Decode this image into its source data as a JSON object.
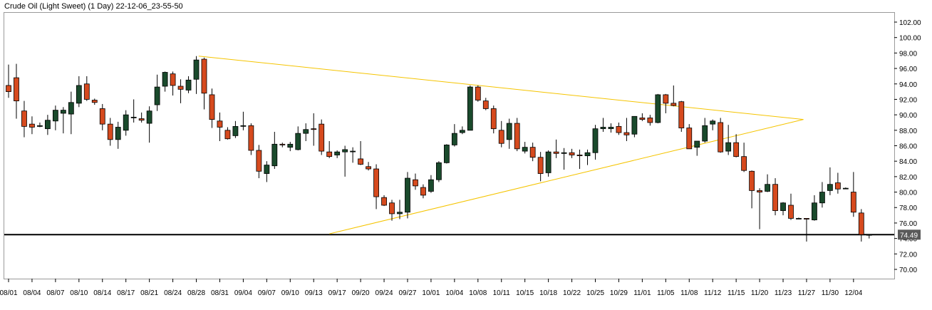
{
  "chart_data": {
    "type": "candlestick",
    "title": "Crude Oil (Light Sweet) (1 Day) 22-12-06_23-55-50",
    "ylim": [
      68.8,
      103.2
    ],
    "y_ticks": [
      102,
      100,
      98,
      96,
      94,
      92,
      90,
      88,
      86,
      84,
      82,
      80,
      78,
      76,
      74,
      72,
      70
    ],
    "y_tick_labels": [
      "102.00",
      "100.00",
      "98.00",
      "96.00",
      "94.00",
      "92.00",
      "90.00",
      "88.00",
      "86.00",
      "84.00",
      "82.00",
      "80.00",
      "78.00",
      "76.00",
      "74.00",
      "72.00",
      "70.00"
    ],
    "x_tick_labels": [
      {
        "label": "08/01",
        "index": 0
      },
      {
        "label": "08/04",
        "index": 3
      },
      {
        "label": "08/07",
        "index": 6
      },
      {
        "label": "08/10",
        "index": 9
      },
      {
        "label": "08/14",
        "index": 12
      },
      {
        "label": "08/17",
        "index": 15
      },
      {
        "label": "08/21",
        "index": 18
      },
      {
        "label": "08/24",
        "index": 21
      },
      {
        "label": "08/28",
        "index": 24
      },
      {
        "label": "08/31",
        "index": 27
      },
      {
        "label": "09/04",
        "index": 30
      },
      {
        "label": "09/07",
        "index": 33
      },
      {
        "label": "09/10",
        "index": 36
      },
      {
        "label": "09/13",
        "index": 39
      },
      {
        "label": "09/17",
        "index": 42
      },
      {
        "label": "09/20",
        "index": 45
      },
      {
        "label": "09/24",
        "index": 48
      },
      {
        "label": "09/27",
        "index": 51
      },
      {
        "label": "10/01",
        "index": 54
      },
      {
        "label": "10/04",
        "index": 57
      },
      {
        "label": "10/08",
        "index": 60
      },
      {
        "label": "10/11",
        "index": 63
      },
      {
        "label": "10/15",
        "index": 66
      },
      {
        "label": "10/18",
        "index": 69
      },
      {
        "label": "10/22",
        "index": 72
      },
      {
        "label": "10/25",
        "index": 75
      },
      {
        "label": "10/29",
        "index": 78
      },
      {
        "label": "11/01",
        "index": 81
      },
      {
        "label": "11/05",
        "index": 84
      },
      {
        "label": "11/08",
        "index": 87
      },
      {
        "label": "11/12",
        "index": 90
      },
      {
        "label": "11/15",
        "index": 93
      },
      {
        "label": "11/20",
        "index": 96
      },
      {
        "label": "11/23",
        "index": 99
      },
      {
        "label": "11/27",
        "index": 102
      },
      {
        "label": "11/30",
        "index": 105
      },
      {
        "label": "12/04",
        "index": 108
      }
    ],
    "candles": [
      [
        93.8,
        96.5,
        92.2,
        93.0
      ],
      [
        94.8,
        96.6,
        89.5,
        91.8
      ],
      [
        90.5,
        91.8,
        87.1,
        88.5
      ],
      [
        88.8,
        89.8,
        87.5,
        88.4
      ],
      [
        88.5,
        89.0,
        88.4,
        88.6
      ],
      [
        88.2,
        90.0,
        87.4,
        89.3
      ],
      [
        89.2,
        91.2,
        88.0,
        90.6
      ],
      [
        90.2,
        91.0,
        87.6,
        90.6
      ],
      [
        90.1,
        93.0,
        87.5,
        91.6
      ],
      [
        91.5,
        95.0,
        91.0,
        93.8
      ],
      [
        94.0,
        95.0,
        91.8,
        92.0
      ],
      [
        91.9,
        92.1,
        91.3,
        91.6
      ],
      [
        90.8,
        91.4,
        88.0,
        88.8
      ],
      [
        88.8,
        89.6,
        86.0,
        86.8
      ],
      [
        86.8,
        89.1,
        85.6,
        88.4
      ],
      [
        88.0,
        90.6,
        87.3,
        90.0
      ],
      [
        89.7,
        92.0,
        89.0,
        89.7
      ],
      [
        89.5,
        90.3,
        89.0,
        89.3
      ],
      [
        88.9,
        91.1,
        86.4,
        90.5
      ],
      [
        91.3,
        95.2,
        90.5,
        93.6
      ],
      [
        93.7,
        95.6,
        93.0,
        95.5
      ],
      [
        95.3,
        95.6,
        92.5,
        93.8
      ],
      [
        93.7,
        94.6,
        91.5,
        93.3
      ],
      [
        93.2,
        95.0,
        92.8,
        94.5
      ],
      [
        94.6,
        97.6,
        92.7,
        97.1
      ],
      [
        97.2,
        97.4,
        90.7,
        92.8
      ],
      [
        92.6,
        93.4,
        88.3,
        89.4
      ],
      [
        89.2,
        90.3,
        86.6,
        88.4
      ],
      [
        88.0,
        88.4,
        86.8,
        86.9
      ],
      [
        87.3,
        89.2,
        87.0,
        88.5
      ],
      [
        88.6,
        90.4,
        88.0,
        88.6
      ],
      [
        88.6,
        88.9,
        84.8,
        85.4
      ],
      [
        85.4,
        86.1,
        81.8,
        82.7
      ],
      [
        82.4,
        84.0,
        81.3,
        83.5
      ],
      [
        83.4,
        87.8,
        83.0,
        86.2
      ],
      [
        86.2,
        86.4,
        85.8,
        86.1
      ],
      [
        85.8,
        86.5,
        85.3,
        86.2
      ],
      [
        85.5,
        88.5,
        85.4,
        87.6
      ],
      [
        87.6,
        88.9,
        86.6,
        88.1
      ],
      [
        88.2,
        90.2,
        86.0,
        88.1
      ],
      [
        88.8,
        89.4,
        84.8,
        85.3
      ],
      [
        85.2,
        86.6,
        84.4,
        84.6
      ],
      [
        84.8,
        85.4,
        84.4,
        85.2
      ],
      [
        85.2,
        86.0,
        82.0,
        85.5
      ],
      [
        85.3,
        85.8,
        83.8,
        85.3
      ],
      [
        84.3,
        86.6,
        83.5,
        83.6
      ],
      [
        83.3,
        83.9,
        82.8,
        83.0
      ],
      [
        83.0,
        83.6,
        77.8,
        79.4
      ],
      [
        79.3,
        79.6,
        78.2,
        78.3
      ],
      [
        78.6,
        79.0,
        76.3,
        77.2
      ],
      [
        77.2,
        79.0,
        76.5,
        77.4
      ],
      [
        77.4,
        82.6,
        76.6,
        81.8
      ],
      [
        81.6,
        82.4,
        80.3,
        80.8
      ],
      [
        80.6,
        81.0,
        79.2,
        79.6
      ],
      [
        80.1,
        82.2,
        79.9,
        81.6
      ],
      [
        81.6,
        84.0,
        81.3,
        83.8
      ],
      [
        83.8,
        86.2,
        83.7,
        86.1
      ],
      [
        86.1,
        88.8,
        85.9,
        87.6
      ],
      [
        87.7,
        88.5,
        87.5,
        88.0
      ],
      [
        88.0,
        93.8,
        88.0,
        93.6
      ],
      [
        93.6,
        93.8,
        91.7,
        91.9
      ],
      [
        91.8,
        92.2,
        90.6,
        90.8
      ],
      [
        90.8,
        91.2,
        87.6,
        88.2
      ],
      [
        88.0,
        89.2,
        85.8,
        86.3
      ],
      [
        86.8,
        89.5,
        85.6,
        88.9
      ],
      [
        88.9,
        89.6,
        85.3,
        85.6
      ],
      [
        85.3,
        86.5,
        85.0,
        85.8
      ],
      [
        85.8,
        86.4,
        84.0,
        84.5
      ],
      [
        84.5,
        85.2,
        81.4,
        82.4
      ],
      [
        82.5,
        85.4,
        82.0,
        85.2
      ],
      [
        85.2,
        86.8,
        84.4,
        85.0
      ],
      [
        85.0,
        85.7,
        82.9,
        85.1
      ],
      [
        85.1,
        85.6,
        84.4,
        84.8
      ],
      [
        84.8,
        85.5,
        83.0,
        84.7
      ],
      [
        84.7,
        85.5,
        83.5,
        85.1
      ],
      [
        85.1,
        88.7,
        84.2,
        88.2
      ],
      [
        88.2,
        89.6,
        87.8,
        88.4
      ],
      [
        88.2,
        88.9,
        87.7,
        88.4
      ],
      [
        88.5,
        89.0,
        87.4,
        87.7
      ],
      [
        87.7,
        89.6,
        86.6,
        87.4
      ],
      [
        87.5,
        89.8,
        87.1,
        89.8
      ],
      [
        89.6,
        90.2,
        89.2,
        89.4
      ],
      [
        89.6,
        90.0,
        88.6,
        89.0
      ],
      [
        89.0,
        92.7,
        88.9,
        92.6
      ],
      [
        92.6,
        92.7,
        90.2,
        91.5
      ],
      [
        91.5,
        93.8,
        91.1,
        91.2
      ],
      [
        91.7,
        91.8,
        87.8,
        88.3
      ],
      [
        88.3,
        88.8,
        85.6,
        85.6
      ],
      [
        85.8,
        86.6,
        84.7,
        86.6
      ],
      [
        86.6,
        89.6,
        86.4,
        88.6
      ],
      [
        88.8,
        89.4,
        88.0,
        89.2
      ],
      [
        89.0,
        89.6,
        85.1,
        85.2
      ],
      [
        85.3,
        88.7,
        84.8,
        86.4
      ],
      [
        86.4,
        87.5,
        84.5,
        84.6
      ],
      [
        84.6,
        86.4,
        82.6,
        82.8
      ],
      [
        82.7,
        82.8,
        77.9,
        80.2
      ],
      [
        80.2,
        80.5,
        75.2,
        80.0
      ],
      [
        80.1,
        82.3,
        80.0,
        81.0
      ],
      [
        81.0,
        81.8,
        77.0,
        77.6
      ],
      [
        77.6,
        78.7,
        77.0,
        78.6
      ],
      [
        78.3,
        79.8,
        76.4,
        76.6
      ],
      [
        76.6,
        76.7,
        76.6,
        76.6
      ],
      [
        76.6,
        76.6,
        73.6,
        76.5
      ],
      [
        76.4,
        79.6,
        76.3,
        78.6
      ],
      [
        78.6,
        81.3,
        78.0,
        80.0
      ],
      [
        80.2,
        83.2,
        79.6,
        81.0
      ],
      [
        81.2,
        82.5,
        79.8,
        80.4
      ],
      [
        80.5,
        80.6,
        80.4,
        80.5
      ],
      [
        80.0,
        82.6,
        76.8,
        77.4
      ],
      [
        77.3,
        77.8,
        73.6,
        74.5
      ],
      [
        74.5,
        74.5,
        74.0,
        74.5
      ]
    ],
    "trendlines": [
      {
        "from": {
          "index": 24.3,
          "value": 97.6
        },
        "to": {
          "index": 101.6,
          "value": 89.4
        }
      },
      {
        "from": {
          "index": 41.0,
          "value": 74.6
        },
        "to": {
          "index": 101.6,
          "value": 89.4
        }
      }
    ],
    "horizontal_line": {
      "value": 74.49,
      "label": "74.49"
    },
    "colors": {
      "up": "#1a4a2c",
      "down": "#d64a1e",
      "outline": "#000000",
      "trendline": "#f5c400",
      "hline": "#000000",
      "price_tag": "#5a5a5a"
    }
  }
}
